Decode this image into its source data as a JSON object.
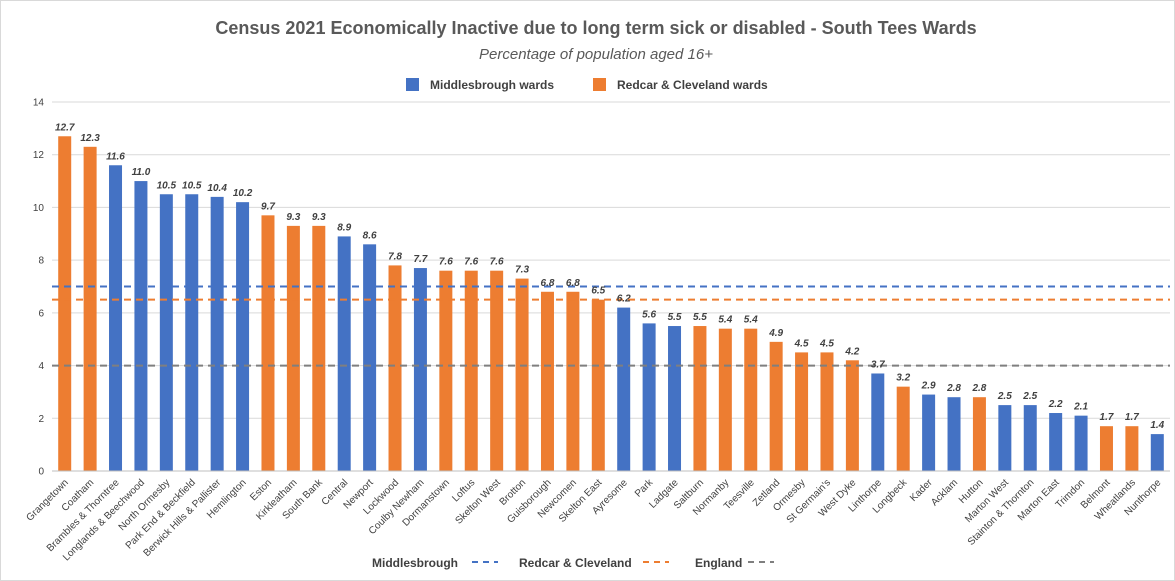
{
  "chart_data": {
    "type": "bar",
    "title": "Census 2021 Economically Inactive due to long term sick or disabled - South Tees Wards",
    "subtitle": "Percentage of population aged 16+",
    "ylim": [
      0,
      14
    ],
    "yticks": [
      0,
      2,
      4,
      6,
      8,
      10,
      12,
      14
    ],
    "grid": true,
    "legend_top": [
      {
        "label": "Middlesbrough wards",
        "color": "#4472C4"
      },
      {
        "label": "Redcar & Cleveland wards",
        "color": "#ED7D31"
      }
    ],
    "legend_bottom": [
      {
        "label": "Middlesbrough",
        "color": "#4472C4"
      },
      {
        "label": "Redcar & Cleveland",
        "color": "#ED7D31"
      },
      {
        "label": "England",
        "color": "#7F7F7F"
      }
    ],
    "reference_lines": [
      {
        "label": "Middlesbrough",
        "value": 7.0,
        "color": "#4472C4"
      },
      {
        "label": "Redcar & Cleveland",
        "value": 6.5,
        "color": "#ED7D31"
      },
      {
        "label": "England",
        "value": 4.0,
        "color": "#7F7F7F"
      }
    ],
    "colors": {
      "mbro": "#4472C4",
      "rc": "#ED7D31"
    },
    "categories": [
      "Grangetown",
      "Coatham",
      "Brambles & Thorntree",
      "Longlands & Beechwood",
      "North Ormesby",
      "Park End & Beckfield",
      "Berwick Hills & Pallister",
      "Hemlington",
      "Eston",
      "Kirkleatham",
      "South Bank",
      "Central",
      "Newport",
      "Lockwood",
      "Coulby Newham",
      "Dormanstown",
      "Loftus",
      "Skelton West",
      "Brotton",
      "Guisborough",
      "Newcomen",
      "Skelton East",
      "Ayresome",
      "Park",
      "Ladgate",
      "Saltburn",
      "Normanby",
      "Teesville",
      "Zetland",
      "Ormesby",
      "St Germain's",
      "West Dyke",
      "Linthorpe",
      "Longbeck",
      "Kader",
      "Acklam",
      "Hutton",
      "Marton West",
      "Stainton & Thornton",
      "Marton East",
      "Trimdon",
      "Belmont",
      "Wheatlands",
      "Nunthorpe"
    ],
    "values": [
      12.7,
      12.3,
      11.6,
      11.0,
      10.5,
      10.5,
      10.4,
      10.2,
      9.7,
      9.3,
      9.3,
      8.9,
      8.6,
      7.8,
      7.7,
      7.6,
      7.6,
      7.6,
      7.3,
      6.8,
      6.8,
      6.5,
      6.2,
      5.6,
      5.5,
      5.5,
      5.4,
      5.4,
      4.9,
      4.5,
      4.5,
      4.2,
      3.7,
      3.2,
      2.9,
      2.8,
      2.8,
      2.5,
      2.5,
      2.2,
      2.1,
      1.7,
      1.7,
      1.4
    ],
    "value_labels": [
      "12.7",
      "12.3",
      "11.6",
      "11.0",
      "10.5",
      "10.5",
      "10.4",
      "10.2",
      "9.7",
      "9.3",
      "9.3",
      "8.9",
      "8.6",
      "7.8",
      "7.7",
      "7.6",
      "7.6",
      "7.6",
      "7.3",
      "6.8",
      "6.8",
      "6.5",
      "6.2",
      "5.6",
      "5.5",
      "5.5",
      "5.4",
      "5.4",
      "4.9",
      "4.5",
      "4.5",
      "4.2",
      "3.7",
      "3.2",
      "2.9",
      "2.8",
      "2.8",
      "2.5",
      "2.5",
      "2.2",
      "2.1",
      "1.7",
      "1.7",
      "1.4"
    ],
    "groups": [
      "rc",
      "rc",
      "mbro",
      "mbro",
      "mbro",
      "mbro",
      "mbro",
      "mbro",
      "rc",
      "rc",
      "rc",
      "mbro",
      "mbro",
      "rc",
      "mbro",
      "rc",
      "rc",
      "rc",
      "rc",
      "rc",
      "rc",
      "rc",
      "mbro",
      "mbro",
      "mbro",
      "rc",
      "rc",
      "rc",
      "rc",
      "rc",
      "rc",
      "rc",
      "mbro",
      "rc",
      "mbro",
      "mbro",
      "rc",
      "mbro",
      "mbro",
      "mbro",
      "mbro",
      "rc",
      "rc",
      "mbro"
    ]
  }
}
